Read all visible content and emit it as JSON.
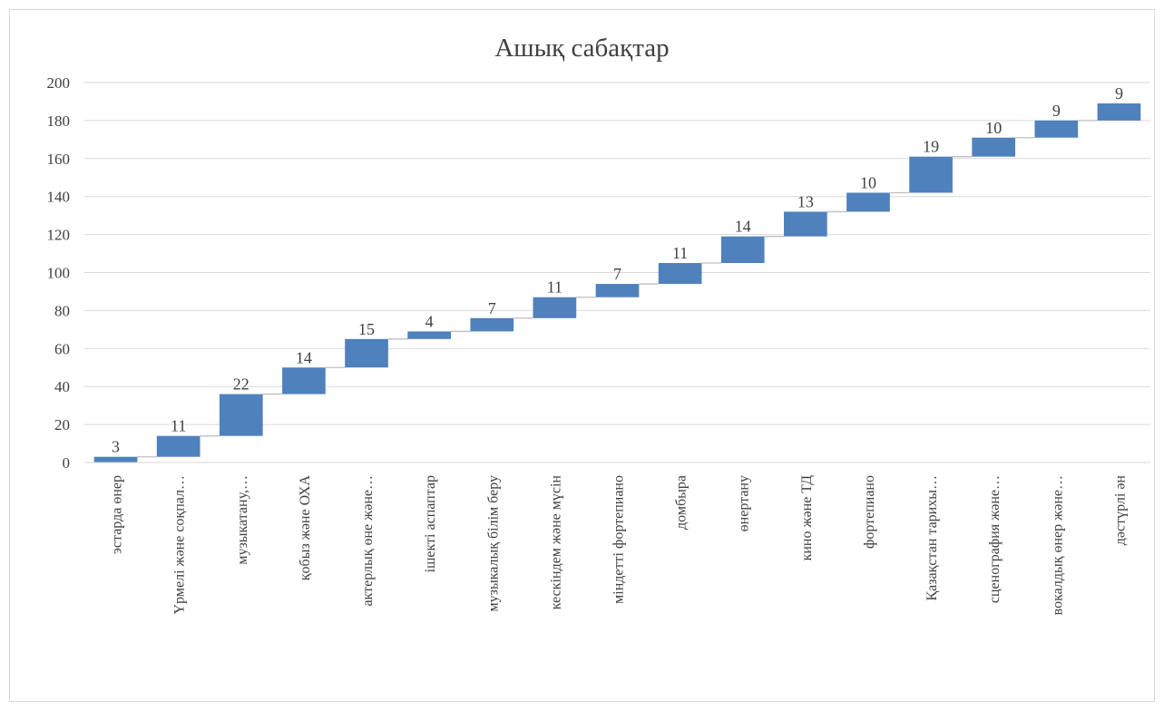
{
  "chart_data": {
    "type": "bar",
    "subtype": "waterfall",
    "title": "Ашық сабақтар",
    "categories": [
      "эстарда өнер",
      "Үрмелі және соқпал…",
      "музыкатану,…",
      "қобыз және ОХА",
      "актерлық өне және…",
      "ішекті аспаптар",
      "музыкалық білім беру",
      "кескіндем және мүсін",
      "міндетті фортепиано",
      "домбыра",
      "өнертану",
      "кино және ТД",
      "фортепиано",
      "Қазақстан тарихы…",
      "сценография және…",
      "вокалдық өнер және…",
      "дәстүрлі ән"
    ],
    "values": [
      3,
      11,
      22,
      14,
      15,
      4,
      7,
      11,
      7,
      11,
      14,
      13,
      10,
      19,
      10,
      9,
      9
    ],
    "ylim": [
      0,
      200
    ],
    "yticks": [
      0,
      20,
      40,
      60,
      80,
      100,
      120,
      140,
      160,
      180,
      200
    ],
    "xlabel": "",
    "ylabel": "",
    "grid": true,
    "bar_color": "#4f81bd",
    "connector_color": "#bfbfbf",
    "grid_color": "#d9d9d9"
  }
}
